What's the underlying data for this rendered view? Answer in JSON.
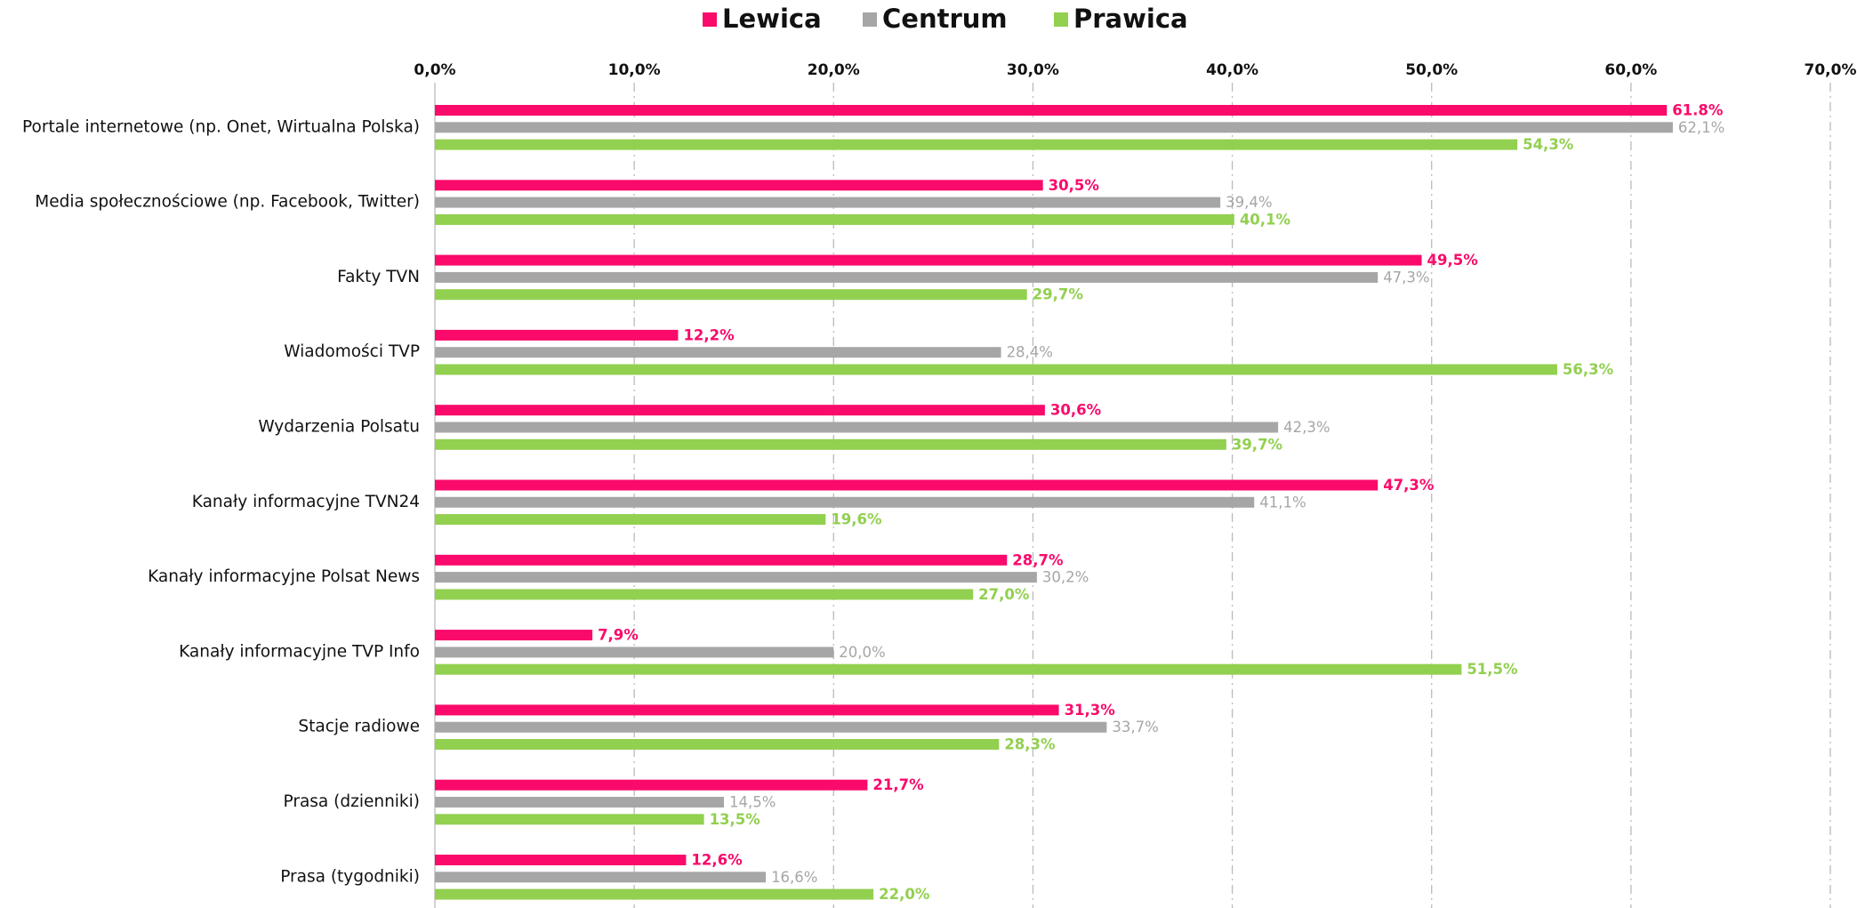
{
  "chart_data": {
    "type": "hbar",
    "categories": [
      "Portale internetowe (np. Onet, Wirtualna Polska)",
      "Media społecznościowe (np. Facebook, Twitter)",
      "Fakty TVN",
      "Wiadomości TVP",
      "Wydarzenia Polsatu",
      "Kanały informacyjne TVN24",
      "Kanały informacyjne Polsat News",
      "Kanały informacyjne TVP Info",
      "Stacje radiowe",
      "Prasa (dzienniki)",
      "Prasa (tygodniki)"
    ],
    "series": [
      {
        "name": "Lewica",
        "color": "#fa0a6a",
        "values": [
          61.8,
          30.5,
          49.5,
          12.2,
          30.6,
          47.3,
          28.7,
          7.9,
          31.3,
          21.7,
          12.6
        ],
        "value_labels": [
          "61.8%",
          "30,5%",
          "49,5%",
          "12,2%",
          "30,6%",
          "47,3%",
          "28,7%",
          "7,9%",
          "31,3%",
          "21,7%",
          "12,6%"
        ]
      },
      {
        "name": "Centrum",
        "color": "#a6a6a6",
        "values": [
          62.1,
          39.4,
          47.3,
          28.4,
          42.3,
          41.1,
          30.2,
          20.0,
          33.7,
          14.5,
          16.6
        ],
        "value_labels": [
          "62,1%",
          "39,4%",
          "47,3%",
          "28,4%",
          "42,3%",
          "41,1%",
          "30,2%",
          "20,0%",
          "33,7%",
          "14,5%",
          "16,6%"
        ]
      },
      {
        "name": "Prawica",
        "color": "#92d050",
        "values": [
          54.3,
          40.1,
          29.7,
          56.3,
          39.7,
          19.6,
          27.0,
          51.5,
          28.3,
          13.5,
          22.0
        ],
        "value_labels": [
          "54,3%",
          "40,1%",
          "29,7%",
          "56,3%",
          "39,7%",
          "19,6%",
          "27,0%",
          "51,5%",
          "28,3%",
          "13,5%",
          "22,0%"
        ]
      }
    ],
    "xlim": [
      0,
      70
    ],
    "xticks": [
      {
        "value": 0,
        "label": "0,0%"
      },
      {
        "value": 10,
        "label": "10,0%"
      },
      {
        "value": 20,
        "label": "20,0%"
      },
      {
        "value": 30,
        "label": "30,0%"
      },
      {
        "value": 40,
        "label": "40,0%"
      },
      {
        "value": 50,
        "label": "50,0%"
      },
      {
        "value": 60,
        "label": "60,0%"
      },
      {
        "value": 70,
        "label": "70,0%"
      }
    ],
    "grid": true,
    "legend": "top"
  }
}
